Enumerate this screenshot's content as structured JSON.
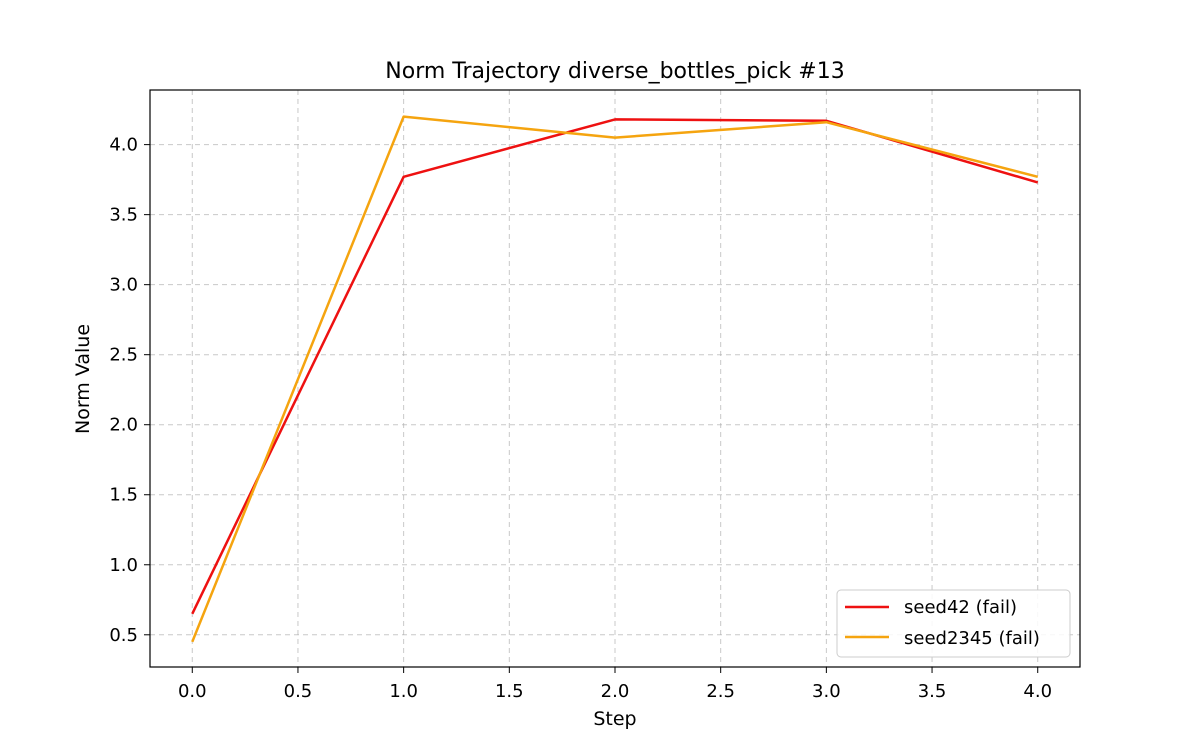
{
  "chart_data": {
    "type": "line",
    "title": "Norm Trajectory diverse_bottles_pick #13",
    "xlabel": "Step",
    "ylabel": "Norm Value",
    "xlim": [
      -0.2,
      4.2
    ],
    "ylim": [
      0.27,
      4.39
    ],
    "xticks": [
      0.0,
      0.5,
      1.0,
      1.5,
      2.0,
      2.5,
      3.0,
      3.5,
      4.0
    ],
    "xtick_labels": [
      "0.0",
      "0.5",
      "1.0",
      "1.5",
      "2.0",
      "2.5",
      "3.0",
      "3.5",
      "4.0"
    ],
    "yticks": [
      0.5,
      1.0,
      1.5,
      2.0,
      2.5,
      3.0,
      3.5,
      4.0
    ],
    "ytick_labels": [
      "0.5",
      "1.0",
      "1.5",
      "2.0",
      "2.5",
      "3.0",
      "3.5",
      "4.0"
    ],
    "grid": true,
    "legend_position": "lower-right",
    "x": [
      0,
      1,
      2,
      3,
      4
    ],
    "series": [
      {
        "name": "seed42 (fail)",
        "color": "#ee1111",
        "values": [
          0.65,
          3.77,
          4.18,
          4.17,
          3.73
        ]
      },
      {
        "name": "seed2345 (fail)",
        "color": "#f5a40f",
        "values": [
          0.45,
          4.2,
          4.05,
          4.16,
          3.77
        ]
      }
    ]
  }
}
